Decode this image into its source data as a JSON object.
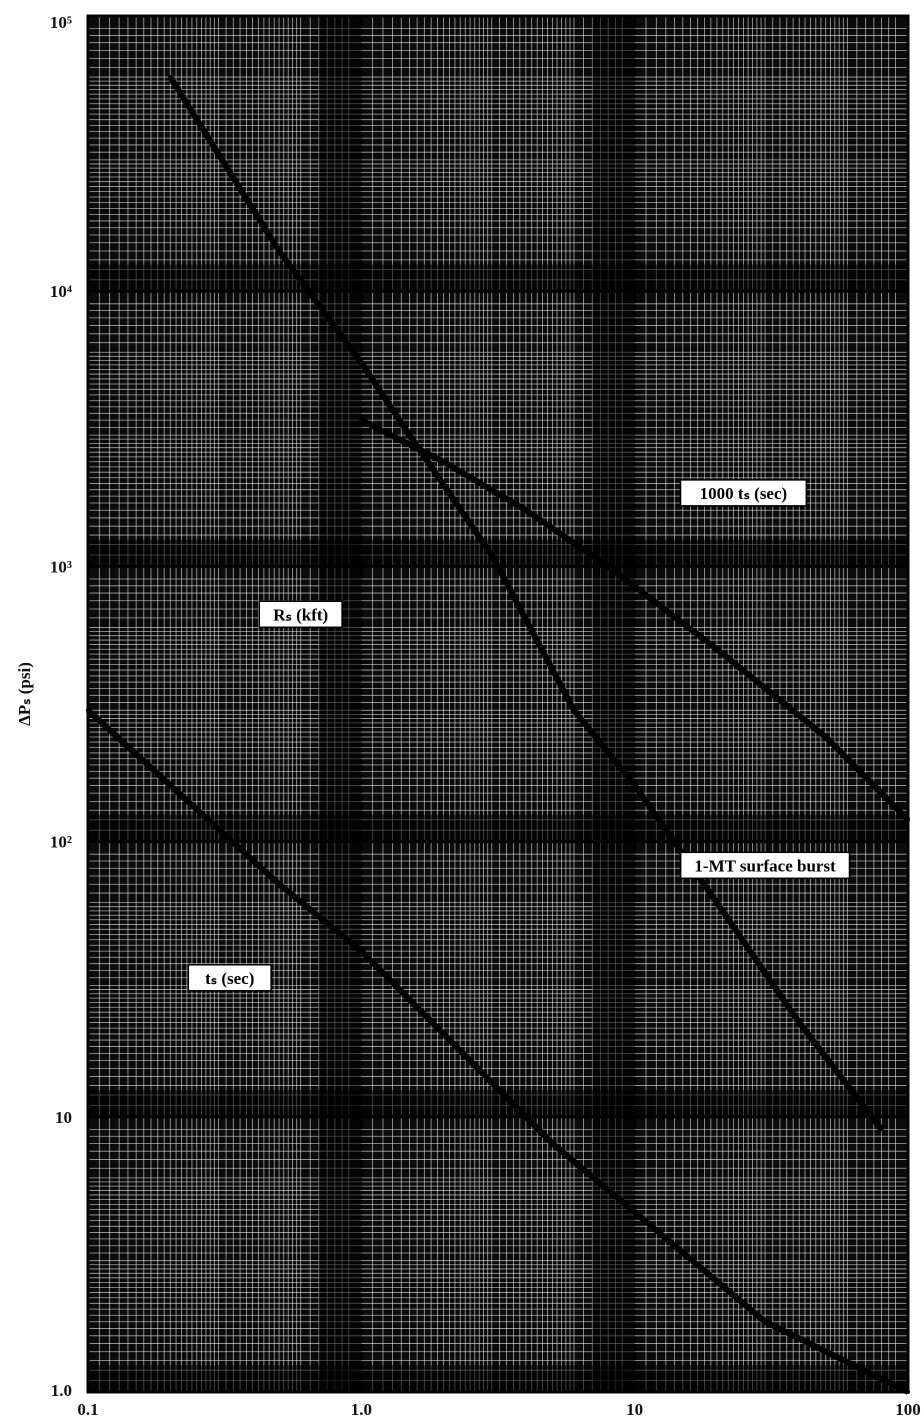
{
  "chart_data": {
    "type": "line",
    "title": "",
    "xlabel": "",
    "ylabel": "ΔPₛ (psi)",
    "x_scale": "log",
    "y_scale": "log",
    "xlim": [
      0.1,
      100
    ],
    "ylim": [
      1,
      100000
    ],
    "grid": true,
    "x_tick_labels": [
      {
        "value": 0.1,
        "label": "0.1"
      },
      {
        "value": 1,
        "label": "1.0"
      },
      {
        "value": 10,
        "label": "10"
      },
      {
        "value": 100,
        "label": "100"
      }
    ],
    "y_tick_labels": [
      {
        "value": 1,
        "label": "1.0"
      },
      {
        "value": 10,
        "label": "10"
      },
      {
        "value": 100,
        "label": "10²"
      },
      {
        "value": 1000,
        "label": "10³"
      },
      {
        "value": 10000,
        "label": "10⁴"
      },
      {
        "value": 100000,
        "label": "10⁵"
      }
    ],
    "annotations": [
      {
        "text": "1000 tₛ (sec)",
        "x": 25,
        "y": 1850
      },
      {
        "text": "Rₛ (kft)",
        "x": 0.6,
        "y": 670
      },
      {
        "text": "1-MT surface burst",
        "x": 30,
        "y": 82
      },
      {
        "text": "tₛ (sec)",
        "x": 0.33,
        "y": 32
      }
    ],
    "series": [
      {
        "name": "Rₛ (kft)",
        "x": [
          0.2,
          0.5,
          1,
          1.5,
          3,
          6,
          10,
          20,
          40,
          80
        ],
        "y": [
          60000,
          14000,
          5500,
          3000,
          1100,
          300,
          160,
          60,
          22,
          9
        ]
      },
      {
        "name": "tₛ (sec)",
        "x": [
          0.1,
          0.2,
          0.5,
          1,
          2,
          5,
          10,
          30,
          100
        ],
        "y": [
          300,
          160,
          70,
          40,
          20,
          8,
          4.5,
          1.8,
          1.0
        ]
      },
      {
        "name": "1000 tₛ (sec)",
        "x": [
          1,
          2,
          4,
          8,
          20,
          50,
          100
        ],
        "y": [
          3400,
          2400,
          1600,
          1000,
          500,
          240,
          120
        ]
      }
    ]
  }
}
